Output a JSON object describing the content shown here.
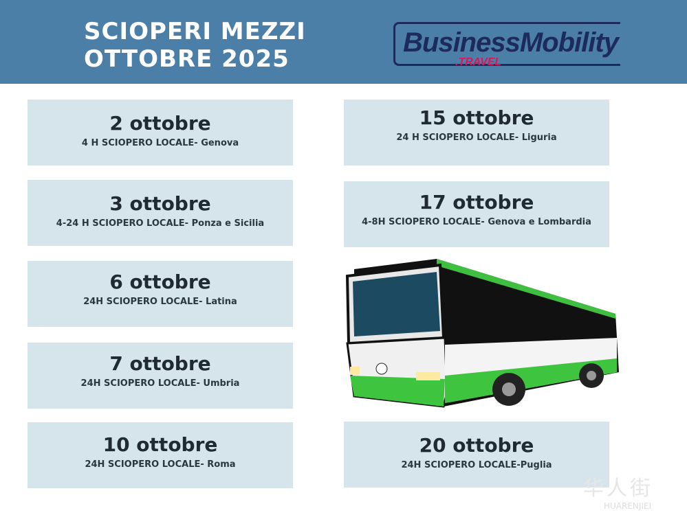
{
  "header": {
    "title_line1": "SCIOPERI MEZZI",
    "title_line2": "OTTOBRE 2025",
    "bg_color": "#4b7fa8"
  },
  "logo": {
    "text": "BusinessMobility",
    "sub": ".TRAVEL"
  },
  "left_cards": [
    {
      "date": "2 ottobre",
      "desc": "4 H SCIOPERO LOCALE- Genova"
    },
    {
      "date": "3 ottobre",
      "desc": "4-24 H SCIOPERO LOCALE- Ponza e Sicilia"
    },
    {
      "date": "6 ottobre",
      "desc": "24H SCIOPERO LOCALE- Latina"
    },
    {
      "date": "7 ottobre",
      "desc": "24H SCIOPERO LOCALE- Umbria"
    },
    {
      "date": "10 ottobre",
      "desc": "24H SCIOPERO LOCALE- Roma"
    }
  ],
  "right_cards": [
    {
      "date": "15 ottobre",
      "desc": "24 H SCIOPERO LOCALE- Liguria"
    },
    {
      "date": "17 ottobre",
      "desc": "4-8H SCIOPERO LOCALE- Genova e Lombardia"
    },
    {
      "date": "20 ottobre",
      "desc": "24H SCIOPERO LOCALE-Puglia"
    }
  ],
  "watermark": {
    "cn": "华人街",
    "latin": "HUARENJIEI"
  },
  "icons": {
    "bus": "bus-illustration"
  }
}
